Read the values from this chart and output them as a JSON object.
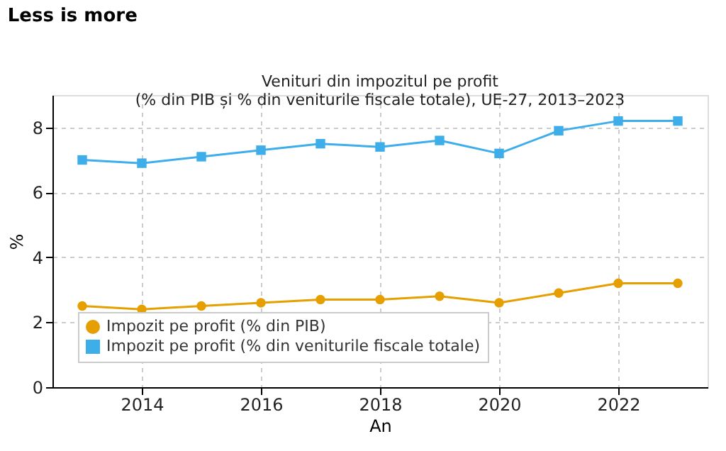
{
  "chart_data": {
    "type": "line",
    "title": "Less is more",
    "subtitle": "Venituri din impozitul pe profit\n(% din PIB și % din veniturile fiscale totale), UE-27, 2013–2023",
    "xlabel": "An",
    "ylabel": "%",
    "x": [
      2013,
      2014,
      2015,
      2016,
      2017,
      2018,
      2019,
      2020,
      2021,
      2022,
      2023
    ],
    "series": [
      {
        "name": "Impozit pe profit (% din PIB)",
        "color": "#e69f00",
        "marker": "circle",
        "values": [
          2.5,
          2.4,
          2.5,
          2.6,
          2.7,
          2.7,
          2.8,
          2.6,
          2.9,
          3.2,
          3.2
        ]
      },
      {
        "name": "Impozit pe profit (% din veniturile fiscale totale)",
        "color": "#3daee9",
        "marker": "square",
        "values": [
          7.0,
          6.9,
          7.1,
          7.3,
          7.5,
          7.4,
          7.6,
          7.2,
          7.9,
          8.2,
          8.2
        ]
      }
    ],
    "xlim": [
      2012.5,
      2023.5
    ],
    "xticks": [
      2014,
      2016,
      2018,
      2020,
      2022
    ],
    "ylim": [
      0,
      9
    ],
    "yticks": [
      0,
      2,
      4,
      6,
      8
    ],
    "grid": true,
    "legend": "bottom left",
    "line_style": "solid"
  }
}
